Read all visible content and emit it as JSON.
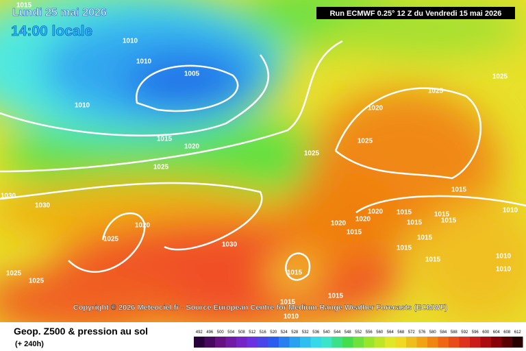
{
  "header": {
    "date": "Lundi 25 mai 2026",
    "time": "14:00 locale",
    "run": "Run ECMWF 0.25° 12 Z du Vendredi 15 mai 2026"
  },
  "copyright": "Copyright © 2026 Meteociel.fr - Source European Centre for Medium-Range Weather Forecasts (ECMWF)",
  "footer": {
    "title": "Geop. Z500 & pression au sol",
    "subtitle": "(+ 240h)"
  },
  "scale": {
    "labels": [
      492,
      496,
      500,
      504,
      508,
      512,
      516,
      520,
      524,
      528,
      532,
      536,
      540,
      544,
      548,
      552,
      556,
      560,
      564,
      568,
      572,
      576,
      580,
      584,
      588,
      592,
      596,
      600,
      604,
      608,
      612
    ]
  },
  "isobars": [
    "1015",
    "1010",
    "1010",
    "1005",
    "1010",
    "1015",
    "1020",
    "1025",
    "1030",
    "1030",
    "1020",
    "1025",
    "1030",
    "1025",
    "1025",
    "1025",
    "1020",
    "1025",
    "1025",
    "1025",
    "1015",
    "1020",
    "1020",
    "1015",
    "1020",
    "1015",
    "1015",
    "1015",
    "1015",
    "1010",
    "1015",
    "1015",
    "1015",
    "1010",
    "1010",
    "1015",
    "1015",
    "1015",
    "1010"
  ]
}
